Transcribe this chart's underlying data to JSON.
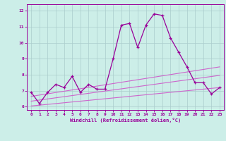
{
  "x": [
    0,
    1,
    2,
    3,
    4,
    5,
    6,
    7,
    8,
    9,
    10,
    11,
    12,
    13,
    14,
    15,
    16,
    17,
    18,
    19,
    20,
    21,
    22,
    23
  ],
  "y_main": [
    6.9,
    6.2,
    6.9,
    7.4,
    7.2,
    7.9,
    6.9,
    7.4,
    7.1,
    7.1,
    9.0,
    11.1,
    11.2,
    9.7,
    11.1,
    11.8,
    11.7,
    10.3,
    9.4,
    8.5,
    7.5,
    7.5,
    6.8,
    7.2
  ],
  "y_line1": [
    6.05,
    6.1,
    6.15,
    6.2,
    6.25,
    6.3,
    6.35,
    6.4,
    6.45,
    6.5,
    6.55,
    6.6,
    6.65,
    6.7,
    6.75,
    6.8,
    6.85,
    6.9,
    6.95,
    7.0,
    7.05,
    7.1,
    7.15,
    7.2
  ],
  "y_line2": [
    6.35,
    6.42,
    6.49,
    6.56,
    6.63,
    6.7,
    6.77,
    6.84,
    6.91,
    6.98,
    7.05,
    7.12,
    7.19,
    7.26,
    7.33,
    7.4,
    7.47,
    7.54,
    7.61,
    7.68,
    7.75,
    7.82,
    7.89,
    7.96
  ],
  "y_line3": [
    6.65,
    6.73,
    6.81,
    6.89,
    6.97,
    7.05,
    7.13,
    7.21,
    7.29,
    7.37,
    7.45,
    7.53,
    7.61,
    7.69,
    7.77,
    7.85,
    7.93,
    8.01,
    8.09,
    8.17,
    8.25,
    8.33,
    8.41,
    8.49
  ],
  "color_main": "#990099",
  "color_lines": "#cc66cc",
  "bg_color": "#cceee8",
  "grid_color": "#aacccc",
  "ylim": [
    5.8,
    12.4
  ],
  "xlim": [
    -0.5,
    23.5
  ],
  "yticks": [
    6,
    7,
    8,
    9,
    10,
    11,
    12
  ],
  "xticks": [
    0,
    1,
    2,
    3,
    4,
    5,
    6,
    7,
    8,
    9,
    10,
    11,
    12,
    13,
    14,
    15,
    16,
    17,
    18,
    19,
    20,
    21,
    22,
    23
  ],
  "xlabel": "Windchill (Refroidissement éolien,°C)"
}
